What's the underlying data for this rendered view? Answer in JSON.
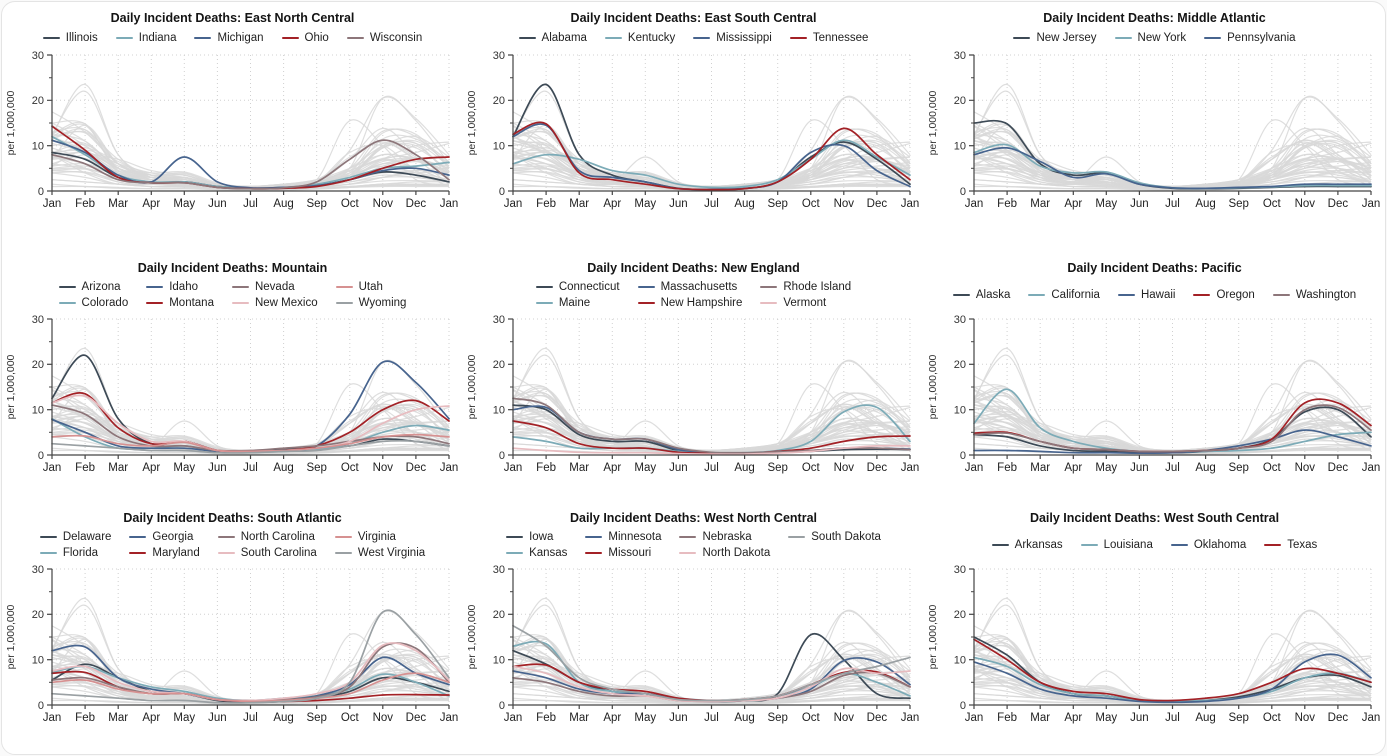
{
  "card": {
    "background": "#ffffff",
    "border_color": "#e4e4e4"
  },
  "chart_data": {
    "type": "line",
    "figure_description": "Small-multiple line charts of daily incident COVID deaths per million by U.S. census division; all states shown in gray behind each panel's highlighted states",
    "y_axis": {
      "label": "per 1,000,000",
      "ticks": [
        0,
        10,
        20,
        30
      ],
      "minor_ticks": [
        5,
        15,
        25
      ],
      "max": 30
    },
    "x_axis": {
      "labels": [
        "Jan",
        "Feb",
        "Mar",
        "Apr",
        "May",
        "Jun",
        "Jul",
        "Aug",
        "Sep",
        "Oct",
        "Nov",
        "Dec",
        "Jan"
      ]
    },
    "colors": {
      "background_line": "#d8d8d8",
      "grid": "#d0d0d0",
      "axis": "#444444"
    },
    "palette": {
      "dark": "#3d4a56",
      "teal": "#7cabb7",
      "slate": "#47648e",
      "red": "#a32126",
      "mauve": "#8d767a",
      "pink": "#e7bcc0",
      "salmon": "#d69191",
      "gray": "#9aa0a3"
    },
    "panels": [
      {
        "title": "Daily Incident Deaths: East North Central",
        "region": "East North Central",
        "legend_rows": 1,
        "legend_area_rows": 1,
        "states": [
          {
            "name": "Illinois",
            "color_key": "dark"
          },
          {
            "name": "Indiana",
            "color_key": "teal"
          },
          {
            "name": "Michigan",
            "color_key": "slate"
          },
          {
            "name": "Ohio",
            "color_key": "red"
          },
          {
            "name": "Wisconsin",
            "color_key": "mauve"
          }
        ]
      },
      {
        "title": "Daily Incident Deaths: East South Central",
        "region": "East South Central",
        "legend_rows": 1,
        "legend_area_rows": 1,
        "states": [
          {
            "name": "Alabama",
            "color_key": "dark"
          },
          {
            "name": "Kentucky",
            "color_key": "teal"
          },
          {
            "name": "Mississippi",
            "color_key": "slate"
          },
          {
            "name": "Tennessee",
            "color_key": "red"
          }
        ]
      },
      {
        "title": "Daily Incident Deaths: Middle Atlantic",
        "region": "Middle Atlantic",
        "legend_rows": 1,
        "legend_area_rows": 1,
        "states": [
          {
            "name": "New Jersey",
            "color_key": "dark"
          },
          {
            "name": "New York",
            "color_key": "teal"
          },
          {
            "name": "Pennsylvania",
            "color_key": "slate"
          }
        ]
      },
      {
        "title": "Daily Incident Deaths: Mountain",
        "region": "Mountain",
        "legend_rows": 2,
        "legend_area_rows": 2,
        "states": [
          {
            "name": "Arizona",
            "color_key": "dark"
          },
          {
            "name": "Colorado",
            "color_key": "teal"
          },
          {
            "name": "Idaho",
            "color_key": "slate"
          },
          {
            "name": "Montana",
            "color_key": "red"
          },
          {
            "name": "Nevada",
            "color_key": "mauve"
          },
          {
            "name": "New Mexico",
            "color_key": "pink"
          },
          {
            "name": "Utah",
            "color_key": "salmon"
          },
          {
            "name": "Wyoming",
            "color_key": "gray"
          }
        ]
      },
      {
        "title": "Daily Incident Deaths: New England",
        "region": "New England",
        "legend_rows": 2,
        "legend_area_rows": 2,
        "states": [
          {
            "name": "Connecticut",
            "color_key": "dark"
          },
          {
            "name": "Maine",
            "color_key": "teal"
          },
          {
            "name": "Massachusetts",
            "color_key": "slate"
          },
          {
            "name": "New Hampshire",
            "color_key": "red"
          },
          {
            "name": "Rhode Island",
            "color_key": "mauve"
          },
          {
            "name": "Vermont",
            "color_key": "pink"
          }
        ]
      },
      {
        "title": "Daily Incident Deaths: Pacific",
        "region": "Pacific",
        "legend_rows": 1,
        "legend_area_rows": 2,
        "states": [
          {
            "name": "Alaska",
            "color_key": "dark"
          },
          {
            "name": "California",
            "color_key": "teal"
          },
          {
            "name": "Hawaii",
            "color_key": "slate"
          },
          {
            "name": "Oregon",
            "color_key": "red"
          },
          {
            "name": "Washington",
            "color_key": "mauve"
          }
        ]
      },
      {
        "title": "Daily Incident Deaths: South Atlantic",
        "region": "South Atlantic",
        "legend_rows": 2,
        "legend_area_rows": 2,
        "states": [
          {
            "name": "Delaware",
            "color_key": "dark"
          },
          {
            "name": "Florida",
            "color_key": "teal"
          },
          {
            "name": "Georgia",
            "color_key": "slate"
          },
          {
            "name": "Maryland",
            "color_key": "red"
          },
          {
            "name": "North Carolina",
            "color_key": "mauve"
          },
          {
            "name": "South Carolina",
            "color_key": "pink"
          },
          {
            "name": "Virginia",
            "color_key": "salmon"
          },
          {
            "name": "West Virginia",
            "color_key": "gray"
          }
        ]
      },
      {
        "title": "Daily Incident Deaths: West North Central",
        "region": "West North Central",
        "legend_rows": 2,
        "legend_area_rows": 2,
        "states": [
          {
            "name": "Iowa",
            "color_key": "dark"
          },
          {
            "name": "Kansas",
            "color_key": "teal"
          },
          {
            "name": "Minnesota",
            "color_key": "slate"
          },
          {
            "name": "Missouri",
            "color_key": "red"
          },
          {
            "name": "Nebraska",
            "color_key": "mauve"
          },
          {
            "name": "North Dakota",
            "color_key": "pink"
          },
          {
            "name": "South Dakota",
            "color_key": "gray"
          }
        ]
      },
      {
        "title": "Daily Incident Deaths: West South Central",
        "region": "West South Central",
        "legend_rows": 1,
        "legend_area_rows": 2,
        "states": [
          {
            "name": "Arkansas",
            "color_key": "dark"
          },
          {
            "name": "Louisiana",
            "color_key": "teal"
          },
          {
            "name": "Oklahoma",
            "color_key": "slate"
          },
          {
            "name": "Texas",
            "color_key": "red"
          }
        ]
      }
    ],
    "series_by_state": {
      "Illinois": [
        8.5,
        7,
        3,
        1.8,
        2,
        1,
        0.6,
        0.8,
        1.2,
        2.5,
        4.2,
        3.5,
        2
      ],
      "Indiana": [
        12,
        8,
        3.5,
        2,
        2,
        1,
        0.6,
        0.8,
        1.5,
        3,
        5,
        5.5,
        6.3
      ],
      "Michigan": [
        11.2,
        8.5,
        3.5,
        2,
        7.5,
        2,
        0.7,
        0.8,
        1.2,
        2.5,
        4.5,
        5,
        3.5
      ],
      "Ohio": [
        14.3,
        9,
        3,
        1.8,
        1.8,
        0.8,
        0.5,
        0.6,
        1,
        2.5,
        5,
        7,
        7.5
      ],
      "Wisconsin": [
        8,
        6,
        2.5,
        1.8,
        1.8,
        0.8,
        0.5,
        0.7,
        2,
        7,
        11.2,
        8,
        2.5
      ],
      "Alabama": [
        12,
        23.5,
        8,
        3.5,
        2,
        0.6,
        0.3,
        0.5,
        2,
        7.5,
        10.8,
        7,
        1.5
      ],
      "Kentucky": [
        6,
        8,
        7,
        4.5,
        3.5,
        1.5,
        0.8,
        1,
        2.5,
        7,
        11.2,
        7.5,
        3.5
      ],
      "Mississippi": [
        12,
        14.5,
        4.5,
        3,
        2,
        0.5,
        0.4,
        0.6,
        2,
        8.5,
        10,
        4.5,
        1
      ],
      "Tennessee": [
        12.5,
        14.8,
        4,
        2.5,
        1.5,
        0.5,
        0.3,
        0.5,
        2,
        7,
        13.8,
        8,
        2.5
      ],
      "New Jersey": [
        15,
        14.8,
        6,
        3.5,
        4,
        1.5,
        0.6,
        0.5,
        0.6,
        0.8,
        1,
        1,
        1
      ],
      "New York": [
        8.5,
        10.2,
        5.5,
        4,
        4.2,
        1.8,
        0.7,
        0.6,
        0.7,
        0.9,
        1.2,
        1.2,
        1.2
      ],
      "Pennsylvania": [
        8,
        9.5,
        6.5,
        3,
        3.8,
        1.5,
        0.7,
        0.6,
        0.8,
        1,
        1.5,
        1.5,
        1.5
      ],
      "Arizona": [
        12.5,
        22,
        8,
        2.5,
        3,
        1,
        0.8,
        1.2,
        1.5,
        2,
        3.5,
        3,
        2
      ],
      "Colorado": [
        8,
        4,
        1.5,
        1.5,
        2,
        0.8,
        0.6,
        0.8,
        1.2,
        2.5,
        5,
        6.5,
        5.5
      ],
      "Idaho": [
        7.8,
        5,
        2,
        1.5,
        1.5,
        0.8,
        0.7,
        1,
        2,
        9,
        20.5,
        16,
        8
      ],
      "Montana": [
        11.5,
        13.5,
        6,
        2.5,
        3,
        1,
        0.8,
        1,
        2,
        5,
        10,
        12,
        7.5
      ],
      "Nevada": [
        11,
        9,
        4,
        2,
        2,
        1,
        1,
        1.5,
        2,
        3,
        4,
        4,
        2.5
      ],
      "New Mexico": [
        11.5,
        13,
        7,
        3,
        3,
        1,
        0.8,
        1,
        1.5,
        3,
        7,
        10,
        10.8
      ],
      "Utah": [
        4,
        4.2,
        2.5,
        2,
        2.8,
        1,
        0.8,
        1,
        1.5,
        2.5,
        4,
        4.5,
        4
      ],
      "Wyoming": [
        2.5,
        2,
        1.5,
        1,
        1,
        0.5,
        0.5,
        0.8,
        1,
        2,
        3,
        3,
        2
      ],
      "Connecticut": [
        11,
        10,
        4.5,
        3,
        3,
        1,
        0.4,
        0.3,
        0.5,
        0.8,
        1.2,
        1.3,
        1.2
      ],
      "Maine": [
        4,
        3,
        1.5,
        1.5,
        1.5,
        0.8,
        0.5,
        0.5,
        1,
        3,
        9.5,
        10.5,
        3
      ],
      "Massachusetts": [
        10,
        10.5,
        5,
        3.5,
        3.5,
        1.2,
        0.5,
        0.4,
        0.6,
        1,
        1.5,
        1.5,
        1.3
      ],
      "New Hampshire": [
        7.5,
        6,
        2.5,
        1.5,
        1.5,
        0.6,
        0.4,
        0.4,
        0.8,
        1.5,
        3,
        4,
        4.2
      ],
      "Rhode Island": [
        12.5,
        11,
        5,
        3.5,
        3.5,
        1.5,
        0.6,
        0.5,
        0.7,
        1,
        1.5,
        1.5,
        1.2
      ],
      "Vermont": [
        1.5,
        1,
        0.6,
        0.5,
        0.5,
        0.3,
        0.2,
        0.2,
        0.4,
        0.8,
        1.5,
        2,
        2
      ],
      "Alaska": [
        4.5,
        4,
        2,
        1,
        0.8,
        0.5,
        0.5,
        0.8,
        1.5,
        3.5,
        9.5,
        10,
        4
      ],
      "California": [
        7,
        14.5,
        6,
        3,
        1.5,
        0.8,
        0.6,
        0.8,
        1,
        1.5,
        3,
        4.5,
        5
      ],
      "Hawaii": [
        1,
        1,
        0.8,
        0.5,
        0.5,
        0.4,
        0.5,
        1,
        2,
        3.5,
        5.5,
        4,
        2
      ],
      "Oregon": [
        4.8,
        5,
        3,
        1.5,
        1.2,
        0.8,
        0.8,
        1,
        1.5,
        3.5,
        11.5,
        11.5,
        6.5
      ],
      "Washington": [
        4.5,
        4.8,
        3,
        1.5,
        1.2,
        0.8,
        0.8,
        1,
        1.5,
        3,
        10,
        10.5,
        5.5
      ],
      "Delaware": [
        5.5,
        9,
        6,
        3,
        2.5,
        1,
        0.6,
        0.8,
        1.5,
        3,
        6,
        5,
        3
      ],
      "Florida": [
        7.2,
        8.5,
        6,
        4,
        3,
        1.5,
        1,
        1.5,
        2,
        3.5,
        6.8,
        5,
        2
      ],
      "Georgia": [
        12,
        12.8,
        6,
        3.5,
        2.5,
        1.2,
        0.8,
        1.2,
        2,
        4.5,
        10.5,
        7,
        4.5
      ],
      "Maryland": [
        7,
        7.2,
        4,
        2.5,
        2.5,
        1.2,
        0.8,
        0.8,
        1,
        1.5,
        2.2,
        2.3,
        2.2
      ],
      "North Carolina": [
        5.5,
        6,
        4,
        2.5,
        2.5,
        1.2,
        1,
        1.2,
        1.8,
        4,
        12.8,
        12.5,
        5
      ],
      "South Carolina": [
        7.5,
        8.5,
        5,
        3,
        2.5,
        1.2,
        1,
        1.5,
        2.5,
        5,
        13.2,
        12,
        5.5
      ],
      "Virginia": [
        5,
        5.5,
        3.5,
        2.5,
        2.5,
        1.2,
        0.8,
        1,
        1.5,
        2.5,
        5.5,
        7,
        5
      ],
      "West Virginia": [
        2.5,
        2,
        1.5,
        1,
        1,
        0.5,
        0.5,
        0.8,
        1.5,
        5,
        20.5,
        15.5,
        6
      ],
      "Iowa": [
        12,
        9,
        5,
        3,
        2.5,
        1.2,
        0.8,
        1,
        2.5,
        15.5,
        10,
        2.5,
        1.5
      ],
      "Kansas": [
        13,
        13.5,
        5,
        3,
        2.5,
        1.5,
        1,
        1.2,
        2,
        4,
        7,
        5,
        2
      ],
      "Minnesota": [
        7.5,
        6,
        3.5,
        2.5,
        2.5,
        1.2,
        0.8,
        1,
        1.5,
        3.5,
        9.8,
        9.5,
        4.5
      ],
      "Missouri": [
        8.5,
        8.8,
        5,
        3.5,
        3,
        1.5,
        1,
        1.2,
        2,
        4.5,
        7.2,
        7.3,
        4
      ],
      "Nebraska": [
        6,
        5,
        3,
        2,
        2,
        1,
        0.8,
        1,
        1.5,
        3,
        6.5,
        7,
        4
      ],
      "North Dakota": [
        8.5,
        7,
        4,
        2.5,
        2,
        1,
        0.8,
        1,
        1.5,
        4,
        8,
        7,
        7.5
      ],
      "South Dakota": [
        17.5,
        13,
        6,
        3.5,
        2.5,
        1.2,
        1,
        1.2,
        2,
        4.5,
        7,
        8.5,
        10.5
      ],
      "Arkansas": [
        15,
        11,
        5,
        2.5,
        2,
        1,
        0.8,
        1,
        1.8,
        3.5,
        6,
        6.5,
        4
      ],
      "Louisiana": [
        10.5,
        8.5,
        4.5,
        2.5,
        2,
        1,
        0.8,
        1,
        1.5,
        3,
        6,
        7,
        5
      ],
      "Oklahoma": [
        9.5,
        7,
        3.5,
        2,
        1.5,
        0.8,
        0.6,
        0.8,
        1.5,
        3.5,
        9.5,
        11,
        6
      ],
      "Texas": [
        14.5,
        10,
        5,
        3,
        2.5,
        1.2,
        1,
        1.5,
        2.5,
        5,
        8,
        7,
        5
      ]
    }
  }
}
